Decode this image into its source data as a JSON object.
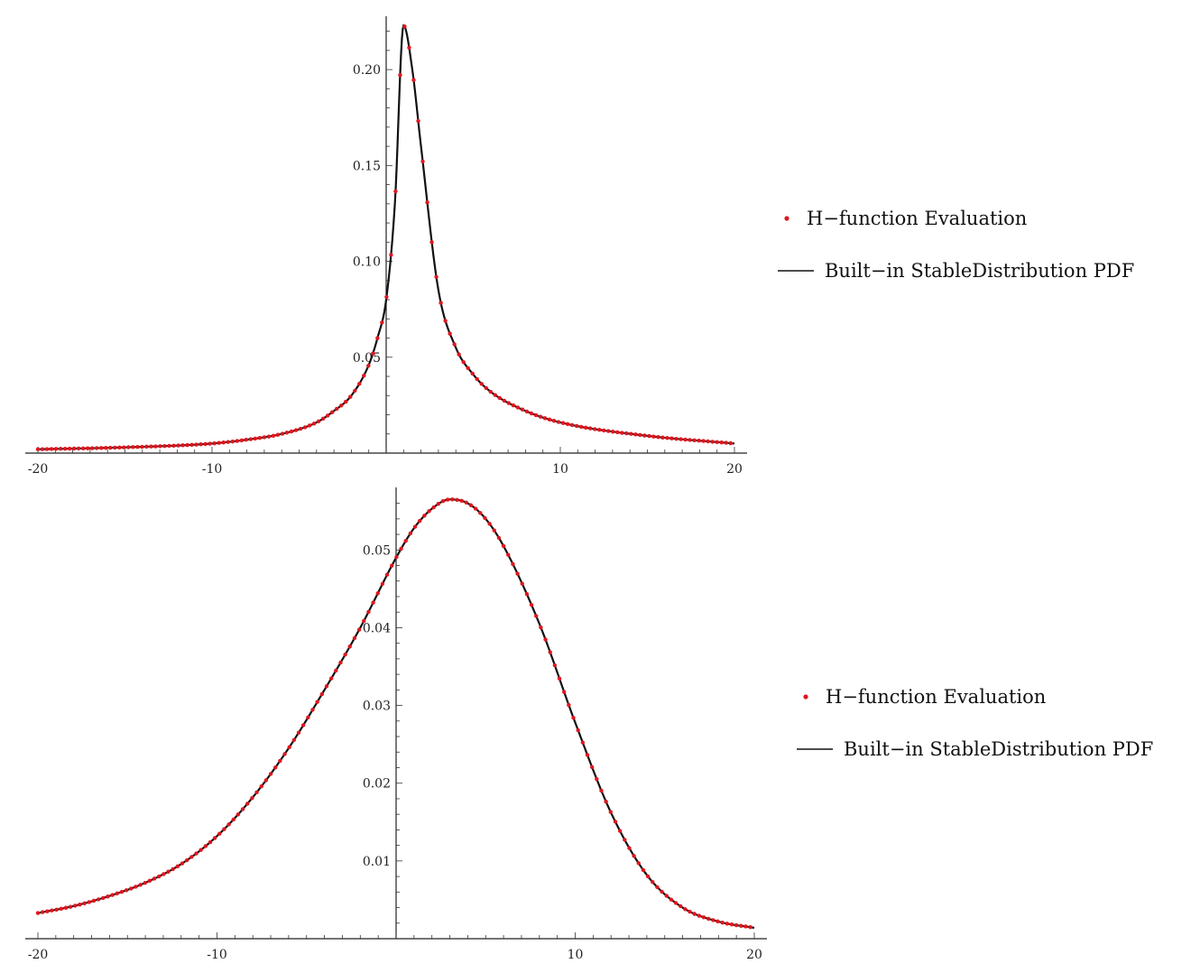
{
  "chart_data": [
    {
      "type": "line",
      "title": "",
      "xlabel": "",
      "ylabel": "",
      "xlim": [
        -20,
        20
      ],
      "ylim": [
        0,
        0.225
      ],
      "x_ticks": [
        -20,
        -10,
        10,
        20
      ],
      "x_tick_labels": [
        "-20",
        "-10",
        "10",
        "20"
      ],
      "y_ticks": [
        0.05,
        0.1,
        0.15,
        0.2
      ],
      "y_tick_labels": [
        "0.05",
        "0.10",
        "0.15",
        "0.20"
      ],
      "grid": false,
      "legend_position": "right",
      "series": [
        {
          "name": "H−function Evaluation",
          "style": "points",
          "color": "#e0161e",
          "x": [
            -20,
            -15,
            -10,
            -8,
            -6,
            -4,
            -3,
            -2,
            -1,
            -0.5,
            0,
            0.5,
            1,
            1.5,
            2,
            3,
            4,
            5,
            6,
            8,
            10,
            15,
            20
          ],
          "y": [
            0.002,
            0.003,
            0.005,
            0.007,
            0.01,
            0.016,
            0.022,
            0.03,
            0.046,
            0.06,
            0.08,
            0.13,
            0.223,
            0.2,
            0.16,
            0.085,
            0.055,
            0.041,
            0.032,
            0.022,
            0.016,
            0.009,
            0.005
          ]
        },
        {
          "name": "Built−in StableDistribution PDF",
          "style": "line",
          "color": "#111111",
          "x": [
            -20,
            -15,
            -10,
            -8,
            -6,
            -4,
            -3,
            -2,
            -1,
            -0.5,
            0,
            0.5,
            1,
            1.5,
            2,
            3,
            4,
            5,
            6,
            8,
            10,
            15,
            20
          ],
          "y": [
            0.002,
            0.003,
            0.005,
            0.007,
            0.01,
            0.016,
            0.022,
            0.03,
            0.046,
            0.06,
            0.08,
            0.13,
            0.223,
            0.2,
            0.16,
            0.085,
            0.055,
            0.041,
            0.032,
            0.022,
            0.016,
            0.009,
            0.005
          ]
        }
      ]
    },
    {
      "type": "line",
      "title": "",
      "xlabel": "",
      "ylabel": "",
      "xlim": [
        -20,
        20
      ],
      "ylim": [
        0,
        0.057
      ],
      "x_ticks": [
        -20,
        -10,
        10,
        20
      ],
      "x_tick_labels": [
        "-20",
        "-10",
        "10",
        "20"
      ],
      "y_ticks": [
        0.01,
        0.02,
        0.03,
        0.04,
        0.05
      ],
      "y_tick_labels": [
        "0.01",
        "0.02",
        "0.03",
        "0.04",
        "0.05"
      ],
      "grid": false,
      "legend_position": "right",
      "series": [
        {
          "name": "H−function Evaluation",
          "style": "points",
          "color": "#e0161e",
          "x": [
            -20,
            -18,
            -16,
            -14,
            -12,
            -10,
            -8,
            -6,
            -4,
            -2,
            0,
            1,
            2,
            3,
            4,
            5,
            6,
            8,
            10,
            12,
            14,
            16,
            18,
            20
          ],
          "y": [
            0.0033,
            0.0042,
            0.0055,
            0.0072,
            0.0096,
            0.0132,
            0.0182,
            0.0245,
            0.032,
            0.04,
            0.049,
            0.0528,
            0.0553,
            0.0565,
            0.056,
            0.054,
            0.0505,
            0.0405,
            0.0278,
            0.0162,
            0.0082,
            0.004,
            0.0022,
            0.0014
          ]
        },
        {
          "name": "Built−in StableDistribution PDF",
          "style": "line",
          "color": "#111111",
          "x": [
            -20,
            -18,
            -16,
            -14,
            -12,
            -10,
            -8,
            -6,
            -4,
            -2,
            0,
            1,
            2,
            3,
            4,
            5,
            6,
            8,
            10,
            12,
            14,
            16,
            18,
            20
          ],
          "y": [
            0.0033,
            0.0042,
            0.0055,
            0.0072,
            0.0096,
            0.0132,
            0.0182,
            0.0245,
            0.032,
            0.04,
            0.049,
            0.0528,
            0.0553,
            0.0565,
            0.056,
            0.054,
            0.0505,
            0.0405,
            0.0278,
            0.0162,
            0.0082,
            0.004,
            0.0022,
            0.0014
          ]
        }
      ]
    }
  ]
}
